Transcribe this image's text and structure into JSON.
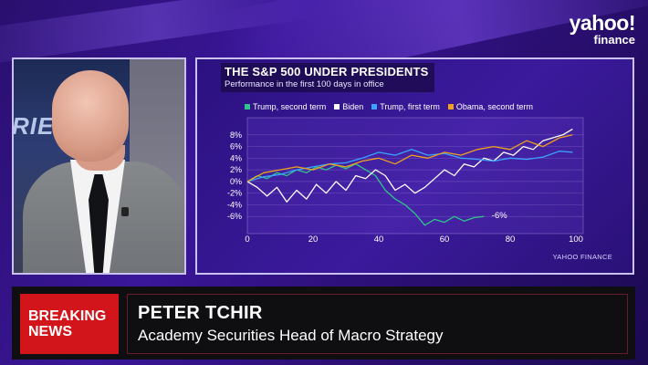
{
  "brand": {
    "line1": "yahoo!",
    "line2": "finance"
  },
  "video": {
    "backdrop_text": "RIEF"
  },
  "chart_data": {
    "type": "line",
    "title": "THE S&P 500 UNDER PRESIDENTS",
    "subtitle": "Performance in the first 100 days in office",
    "xlabel": "",
    "ylabel": "",
    "xlim": [
      0,
      100
    ],
    "ylim": [
      -8,
      10
    ],
    "x_ticks": [
      0,
      20,
      40,
      60,
      80,
      100
    ],
    "y_ticks": [
      "8%",
      "6%",
      "4%",
      "2%",
      "0%",
      "-2%",
      "-4%",
      "-6%"
    ],
    "y_tick_values": [
      8,
      6,
      4,
      2,
      0,
      -2,
      -4,
      -6
    ],
    "grid": true,
    "legend_position": "top",
    "annotation": {
      "text": "-6%",
      "x": 73,
      "y": -6
    },
    "source": "YAHOO FINANCE",
    "series": [
      {
        "name": "Trump, second term",
        "color": "#2fc48d",
        "x": [
          0,
          3,
          6,
          9,
          12,
          15,
          18,
          21,
          24,
          27,
          30,
          33,
          36,
          39,
          42,
          45,
          48,
          51,
          54,
          57,
          60,
          63,
          66,
          69,
          72
        ],
        "y": [
          0,
          1,
          0.5,
          1.5,
          1,
          2,
          1.5,
          2.5,
          2,
          2.8,
          2.2,
          3,
          2,
          1,
          -1.5,
          -3,
          -4,
          -5.5,
          -7.5,
          -6.5,
          -7,
          -6,
          -6.8,
          -6.2,
          -6
        ]
      },
      {
        "name": "Biden",
        "color": "#ffffff",
        "x": [
          0,
          3,
          6,
          9,
          12,
          15,
          18,
          21,
          24,
          27,
          30,
          33,
          36,
          39,
          42,
          45,
          48,
          51,
          54,
          57,
          60,
          63,
          66,
          69,
          72,
          75,
          78,
          81,
          84,
          87,
          90,
          93,
          96,
          99
        ],
        "y": [
          0,
          -1,
          -2.5,
          -1,
          -3.5,
          -1.5,
          -3,
          -0.5,
          -2,
          0,
          -1.5,
          1,
          0.5,
          2,
          1,
          -1.5,
          -0.5,
          -2,
          -1,
          0.5,
          2,
          1,
          3,
          2.5,
          4,
          3.5,
          5,
          4.5,
          6,
          5.5,
          7,
          7.5,
          8,
          9
        ]
      },
      {
        "name": "Trump, first term",
        "color": "#3aa3ff",
        "x": [
          0,
          5,
          10,
          15,
          20,
          25,
          30,
          35,
          40,
          45,
          50,
          55,
          60,
          65,
          70,
          75,
          80,
          85,
          90,
          95,
          99
        ],
        "y": [
          0,
          0.8,
          1.2,
          2,
          2.5,
          3,
          3.2,
          4,
          5,
          4.5,
          5.5,
          4.5,
          4.8,
          4,
          3.8,
          3.5,
          4,
          3.8,
          4.2,
          5.2,
          5
        ]
      },
      {
        "name": "Obama, second term",
        "color": "#f0a21a",
        "x": [
          0,
          5,
          10,
          15,
          20,
          25,
          30,
          35,
          40,
          45,
          50,
          55,
          60,
          65,
          70,
          75,
          80,
          85,
          90,
          95,
          99
        ],
        "y": [
          0,
          1.5,
          2,
          2.5,
          2,
          3,
          2.5,
          3.5,
          4,
          3,
          4.5,
          4,
          5,
          4.5,
          5.5,
          6,
          5.5,
          7,
          6,
          7.5,
          8
        ]
      }
    ]
  },
  "lower_third": {
    "badge_line1": "BREAKING",
    "badge_line2": "NEWS",
    "name": "PETER TCHIR",
    "title": "Academy Securities Head of Macro Strategy"
  }
}
